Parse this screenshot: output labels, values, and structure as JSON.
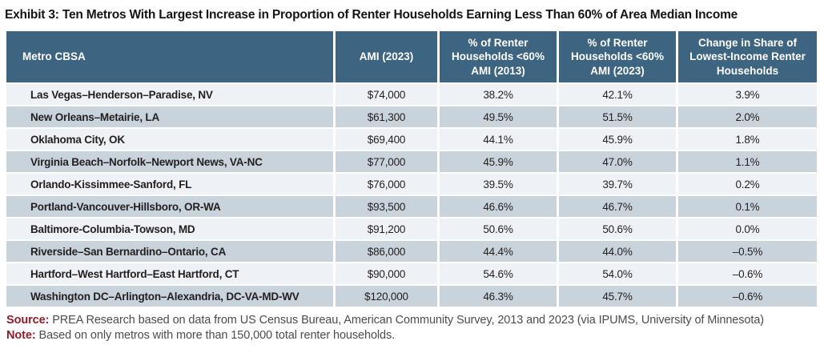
{
  "title": "Exhibit 3: Ten Metros With Largest Increase in Proportion of Renter Households Earning Less Than 60% of Area Median Income",
  "table": {
    "columns": [
      "Metro CBSA",
      "AMI (2023)",
      "% of Renter Households <60% AMI (2013)",
      "% of Renter Households <60% AMI (2023)",
      "Change in Share of Lowest-Income Renter Households"
    ],
    "rows": [
      [
        "Las Vegas–Henderson–Paradise, NV",
        "$74,000",
        "38.2%",
        "42.1%",
        "3.9%"
      ],
      [
        "New Orleans–Metairie, LA",
        "$61,300",
        "49.5%",
        "51.5%",
        "2.0%"
      ],
      [
        "Oklahoma City, OK",
        "$69,400",
        "44.1%",
        "45.9%",
        "1.8%"
      ],
      [
        "Virginia Beach–Norfolk–Newport News, VA-NC",
        "$77,000",
        "45.9%",
        "47.0%",
        "1.1%"
      ],
      [
        "Orlando-Kissimmee-Sanford, FL",
        "$76,000",
        "39.5%",
        "39.7%",
        "0.2%"
      ],
      [
        "Portland-Vancouver-Hillsboro, OR-WA",
        "$93,500",
        "46.6%",
        "46.7%",
        "0.1%"
      ],
      [
        "Baltimore-Columbia-Towson, MD",
        "$91,200",
        "50.6%",
        "50.6%",
        "0.0%"
      ],
      [
        "Riverside–San Bernardino–Ontario, CA",
        "$86,000",
        "44.4%",
        "44.0%",
        "–0.5%"
      ],
      [
        "Hartford–West Hartford–East Hartford, CT",
        "$90,000",
        "54.6%",
        "54.0%",
        "–0.6%"
      ],
      [
        "Washington DC–Arlington–Alexandria, DC-VA-MD-WV",
        "$120,000",
        "46.3%",
        "45.7%",
        "–0.6%"
      ]
    ]
  },
  "footer": {
    "source_label": "Source:",
    "source_text": "PREA Research based on data from US Census Bureau, American Community Survey, 2013 and 2023 (via IPUMS, University of Minnesota)",
    "note_label": "Note:",
    "note_text": "Based on only metros with more than 150,000 total renter households."
  },
  "colors": {
    "header_bg": "#3d6480",
    "header_text": "#ffffff",
    "row_light": "#eef1f5",
    "row_dark": "#c9d3dc",
    "body_text": "#231f20",
    "footnote_text": "#4c4c4e",
    "footnote_label": "#8e1c2c"
  }
}
